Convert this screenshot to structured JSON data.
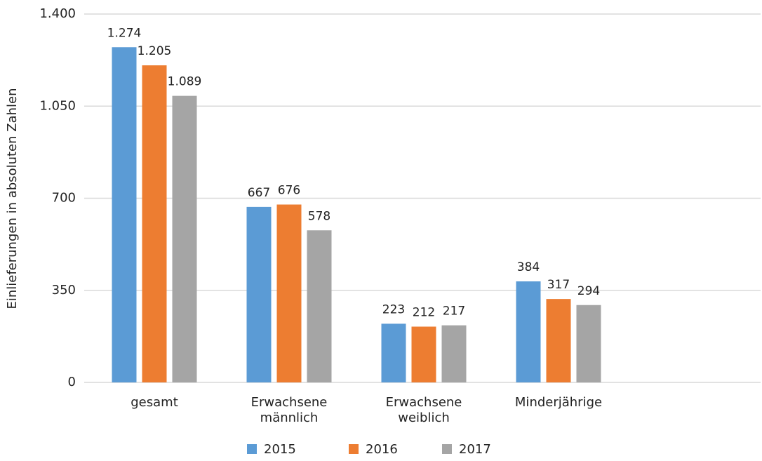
{
  "chart_data": {
    "type": "bar",
    "y_label": "Einlieferungen in absoluten Zahlen",
    "categories": [
      "gesamt",
      "Erwachsene männlich",
      "Erwachsene weiblich",
      "Minderjährige",
      null
    ],
    "series": [
      {
        "name": "2015",
        "color": "#5b9bd5",
        "values": [
          1274,
          667,
          223,
          384,
          null
        ],
        "value_labels": [
          "1.274",
          "667",
          "223",
          "384",
          null
        ]
      },
      {
        "name": "2016",
        "color": "#ed7d31",
        "values": [
          1205,
          676,
          212,
          317,
          null
        ],
        "value_labels": [
          "1.205",
          "676",
          "212",
          "317",
          null
        ]
      },
      {
        "name": "2017",
        "color": "#a5a5a5",
        "values": [
          1089,
          578,
          217,
          294,
          null
        ],
        "value_labels": [
          "1.089",
          "578",
          "217",
          "294",
          null
        ]
      }
    ],
    "ylim": [
      0,
      1400
    ],
    "yticks": [
      0,
      350,
      700,
      {
        "value": 1050,
        "label": "1.050"
      },
      {
        "value": 1400,
        "label": "1.400"
      }
    ],
    "grid": true,
    "legend": "bottom"
  }
}
